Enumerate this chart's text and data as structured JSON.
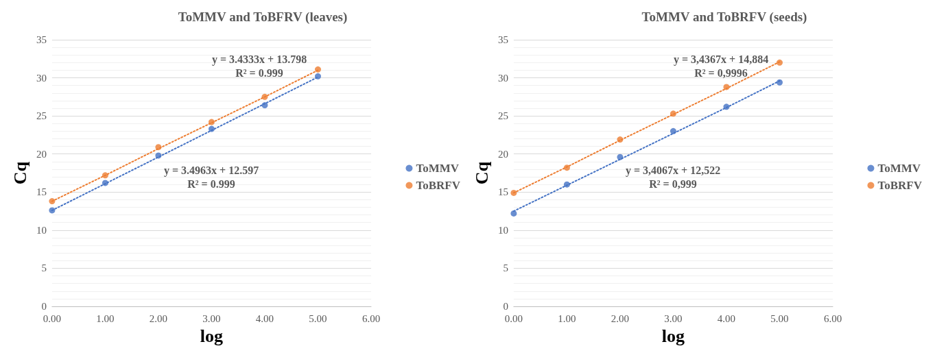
{
  "chart_data": [
    {
      "type": "scatter",
      "title": "ToMMV and ToBFRV (leaves)",
      "xlabel": "log",
      "ylabel": "Cq",
      "x": [
        0,
        1,
        2,
        3,
        4,
        5
      ],
      "series": [
        {
          "name": "ToMMV",
          "color": "#4472c4",
          "values": [
            12.6,
            16.2,
            19.8,
            23.3,
            26.4,
            30.2
          ]
        },
        {
          "name": "ToBRFV",
          "color": "#ed7d31",
          "values": [
            13.8,
            17.2,
            20.9,
            24.2,
            27.5,
            31.1
          ]
        },
        {
          "type": "line",
          "color": "#4472c4",
          "values": [
            12.6,
            16.1,
            19.6,
            23.1,
            26.6,
            30.1
          ],
          "line_style": "dotted",
          "marker": "none"
        },
        {
          "type": "line",
          "color": "#ed7d31",
          "values": [
            13.8,
            17.2,
            20.7,
            24.1,
            27.5,
            31.0
          ],
          "line_style": "dotted",
          "marker": "none"
        }
      ],
      "xlim": [
        0,
        6
      ],
      "xticks": [
        {
          "value": 0,
          "label": "0.00"
        },
        {
          "value": 1,
          "label": "1.00"
        },
        {
          "value": 2,
          "label": "2.00"
        },
        {
          "value": 3,
          "label": "3.00"
        },
        {
          "value": 4,
          "label": "4.00"
        },
        {
          "value": 5,
          "label": "5.00"
        },
        {
          "value": 6,
          "label": "6.00"
        }
      ],
      "ylim": [
        0,
        35
      ],
      "yticks": [
        0,
        5,
        10,
        15,
        20,
        25,
        30,
        35
      ],
      "grid": "y",
      "legend": "right",
      "marker": "circle",
      "annotations": [
        "y = 3.4333x + 13.798\nR² = 0.999",
        "y = 3.4963x + 12.597\nR² = 0.999"
      ]
    },
    {
      "type": "scatter",
      "title": "ToMMV and ToBRFV (seeds)",
      "xlabel": "log",
      "ylabel": "Cq",
      "x": [
        0,
        1,
        2,
        3,
        4,
        5
      ],
      "series": [
        {
          "name": "ToMMV",
          "color": "#4472c4",
          "values": [
            12.2,
            16.0,
            19.6,
            23.0,
            26.2,
            29.4
          ]
        },
        {
          "name": "ToBRFV",
          "color": "#ed7d31",
          "values": [
            14.9,
            18.2,
            21.9,
            25.3,
            28.8,
            32.0
          ]
        },
        {
          "type": "line",
          "color": "#4472c4",
          "values": [
            12.5,
            15.9,
            19.3,
            22.7,
            26.1,
            29.6
          ],
          "line_style": "dotted",
          "marker": "none"
        },
        {
          "type": "line",
          "color": "#ed7d31",
          "values": [
            14.9,
            18.3,
            21.8,
            25.2,
            28.6,
            32.1
          ],
          "line_style": "dotted",
          "marker": "none"
        }
      ],
      "xlim": [
        0,
        6
      ],
      "xticks": [
        {
          "value": 0,
          "label": "0.00"
        },
        {
          "value": 1,
          "label": "1.00"
        },
        {
          "value": 2,
          "label": "2.00"
        },
        {
          "value": 3,
          "label": "3.00"
        },
        {
          "value": 4,
          "label": "4.00"
        },
        {
          "value": 5,
          "label": "5.00"
        },
        {
          "value": 6,
          "label": "6.00"
        }
      ],
      "ylim": [
        0,
        35
      ],
      "yticks": [
        0,
        5,
        10,
        15,
        20,
        25,
        30,
        35
      ],
      "grid": "y",
      "legend": "right",
      "marker": "circle",
      "annotations": [
        "y = 3,4367x + 14,884\nR² = 0,9996",
        "y = 3,4067x + 12,522\nR² = 0,999"
      ]
    }
  ]
}
